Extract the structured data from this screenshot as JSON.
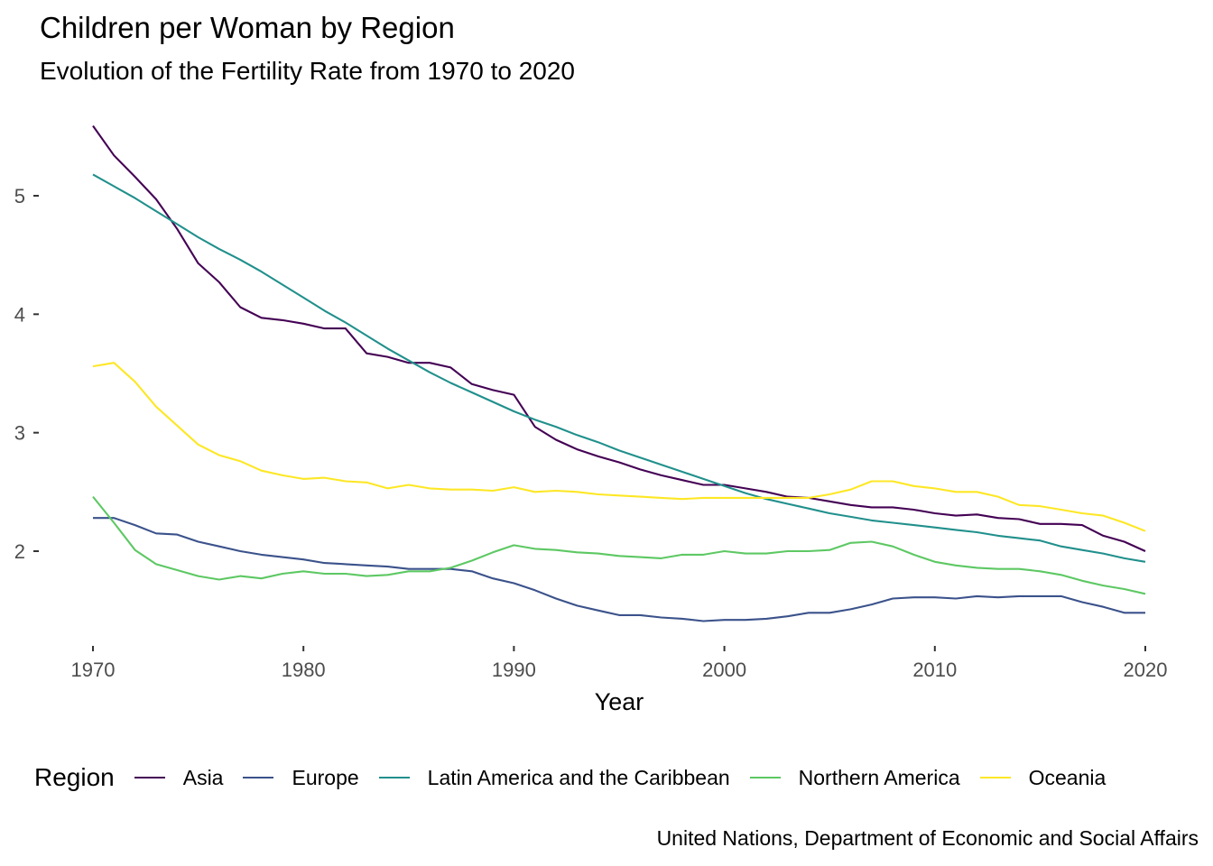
{
  "chart_data": {
    "type": "line",
    "title": "Children per Woman by Region",
    "subtitle": "Evolution of the Fertility Rate from 1970 to 2020",
    "xlabel": "Year",
    "ylabel": "",
    "caption": "United Nations, Department of Economic and Social Affairs",
    "xlim": [
      1970,
      2020
    ],
    "ylim": [
      1.35,
      5.6
    ],
    "x_ticks": [
      1970,
      1980,
      1990,
      2000,
      2010,
      2020
    ],
    "y_ticks": [
      2,
      3,
      4,
      5
    ],
    "grid": false,
    "legend": {
      "title": "Region",
      "position": "bottom"
    },
    "x": [
      1970,
      1971,
      1972,
      1973,
      1974,
      1975,
      1976,
      1977,
      1978,
      1979,
      1980,
      1981,
      1982,
      1983,
      1984,
      1985,
      1986,
      1987,
      1988,
      1989,
      1990,
      1991,
      1992,
      1993,
      1994,
      1995,
      1996,
      1997,
      1998,
      1999,
      2000,
      2001,
      2002,
      2003,
      2004,
      2005,
      2006,
      2007,
      2008,
      2009,
      2010,
      2011,
      2012,
      2013,
      2014,
      2015,
      2016,
      2017,
      2018,
      2019,
      2020
    ],
    "series": [
      {
        "name": "Asia",
        "color": "#440154",
        "values": [
          5.59,
          5.34,
          5.16,
          4.97,
          4.72,
          4.43,
          4.27,
          4.06,
          3.97,
          3.95,
          3.92,
          3.88,
          3.88,
          3.67,
          3.64,
          3.59,
          3.59,
          3.55,
          3.41,
          3.36,
          3.32,
          3.05,
          2.94,
          2.86,
          2.8,
          2.75,
          2.69,
          2.64,
          2.6,
          2.56,
          2.56,
          2.53,
          2.5,
          2.46,
          2.45,
          2.42,
          2.39,
          2.37,
          2.37,
          2.35,
          2.32,
          2.3,
          2.31,
          2.28,
          2.27,
          2.23,
          2.23,
          2.22,
          2.13,
          2.08,
          2.0
        ]
      },
      {
        "name": "Europe",
        "color": "#3B528B",
        "values": [
          2.28,
          2.28,
          2.22,
          2.15,
          2.14,
          2.08,
          2.04,
          2.0,
          1.97,
          1.95,
          1.93,
          1.9,
          1.89,
          1.88,
          1.87,
          1.85,
          1.85,
          1.85,
          1.83,
          1.77,
          1.73,
          1.67,
          1.6,
          1.54,
          1.5,
          1.46,
          1.46,
          1.44,
          1.43,
          1.41,
          1.42,
          1.42,
          1.43,
          1.45,
          1.48,
          1.48,
          1.51,
          1.55,
          1.6,
          1.61,
          1.61,
          1.6,
          1.62,
          1.61,
          1.62,
          1.62,
          1.62,
          1.57,
          1.53,
          1.48,
          1.48
        ]
      },
      {
        "name": "Latin America and the Caribbean",
        "color": "#21908C",
        "values": [
          5.18,
          5.08,
          4.98,
          4.87,
          4.76,
          4.65,
          4.55,
          4.46,
          4.36,
          4.25,
          4.14,
          4.03,
          3.93,
          3.82,
          3.71,
          3.61,
          3.51,
          3.42,
          3.34,
          3.26,
          3.18,
          3.11,
          3.05,
          2.98,
          2.92,
          2.85,
          2.79,
          2.73,
          2.67,
          2.61,
          2.55,
          2.49,
          2.44,
          2.4,
          2.36,
          2.32,
          2.29,
          2.26,
          2.24,
          2.22,
          2.2,
          2.18,
          2.16,
          2.13,
          2.11,
          2.09,
          2.04,
          2.01,
          1.98,
          1.94,
          1.91
        ]
      },
      {
        "name": "Northern America",
        "color": "#5DC863",
        "values": [
          2.46,
          2.24,
          2.01,
          1.89,
          1.84,
          1.79,
          1.76,
          1.79,
          1.77,
          1.81,
          1.83,
          1.81,
          1.81,
          1.79,
          1.8,
          1.83,
          1.83,
          1.86,
          1.92,
          1.99,
          2.05,
          2.02,
          2.01,
          1.99,
          1.98,
          1.96,
          1.95,
          1.94,
          1.97,
          1.97,
          2.0,
          1.98,
          1.98,
          2.0,
          2.0,
          2.01,
          2.07,
          2.08,
          2.04,
          1.97,
          1.91,
          1.88,
          1.86,
          1.85,
          1.85,
          1.83,
          1.8,
          1.75,
          1.71,
          1.68,
          1.64
        ]
      },
      {
        "name": "Oceania",
        "color": "#FDE725",
        "values": [
          3.56,
          3.59,
          3.43,
          3.22,
          3.06,
          2.9,
          2.81,
          2.76,
          2.68,
          2.64,
          2.61,
          2.62,
          2.59,
          2.58,
          2.53,
          2.56,
          2.53,
          2.52,
          2.52,
          2.51,
          2.54,
          2.5,
          2.51,
          2.5,
          2.48,
          2.47,
          2.46,
          2.45,
          2.44,
          2.45,
          2.45,
          2.45,
          2.45,
          2.45,
          2.45,
          2.48,
          2.52,
          2.59,
          2.59,
          2.55,
          2.53,
          2.5,
          2.5,
          2.46,
          2.39,
          2.38,
          2.35,
          2.32,
          2.3,
          2.24,
          2.17
        ]
      }
    ]
  }
}
